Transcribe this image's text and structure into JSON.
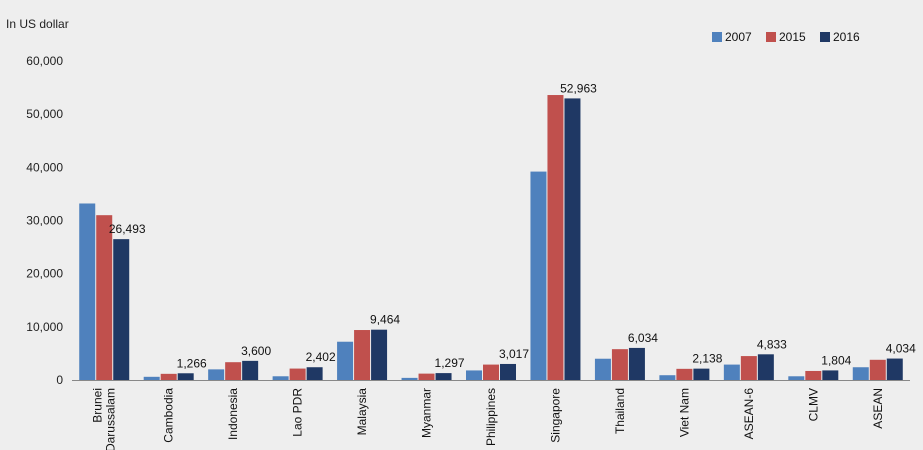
{
  "chart_data": {
    "type": "bar",
    "title": "",
    "ylabel": "In US dollar",
    "xlabel": "",
    "ylim": [
      0,
      60000
    ],
    "yticks": [
      0,
      10000,
      20000,
      30000,
      40000,
      50000,
      60000
    ],
    "ytick_labels": [
      "0",
      "10,000",
      "20,000",
      "30,000",
      "40,000",
      "50,000",
      "60,000"
    ],
    "grid": false,
    "legend_position": "top-right",
    "categories": [
      [
        "Brunei",
        "Darussalam"
      ],
      [
        "Cambodia"
      ],
      [
        "Indonesia"
      ],
      [
        "Lao PDR"
      ],
      [
        "Malaysia"
      ],
      [
        "Myanmar"
      ],
      [
        "Philippines"
      ],
      [
        "Singapore"
      ],
      [
        "Thailand"
      ],
      [
        "Viet Nam"
      ],
      [
        "ASEAN-6"
      ],
      [
        "CLMV"
      ],
      [
        "ASEAN"
      ]
    ],
    "series": [
      {
        "name": "2007",
        "color": "#4f81bd",
        "values": [
          33200,
          600,
          2000,
          700,
          7200,
          400,
          1800,
          39200,
          4000,
          900,
          2900,
          700,
          2400
        ]
      },
      {
        "name": "2015",
        "color": "#c0504d",
        "values": [
          31000,
          1160,
          3350,
          2150,
          9400,
          1200,
          2900,
          53600,
          5800,
          2100,
          4500,
          1700,
          3800
        ]
      },
      {
        "name": "2016",
        "color": "#1f3864",
        "values": [
          26493,
          1266,
          3600,
          2402,
          9464,
          1297,
          3017,
          52963,
          6034,
          2138,
          4833,
          1804,
          4034
        ]
      }
    ],
    "data_labels": [
      "26,493",
      "1,266",
      "3,600",
      "2,402",
      "9,464",
      "1,297",
      "3,017",
      "52,963",
      "6,034",
      "2,138",
      "4,833",
      "1,804",
      "4,034"
    ]
  }
}
